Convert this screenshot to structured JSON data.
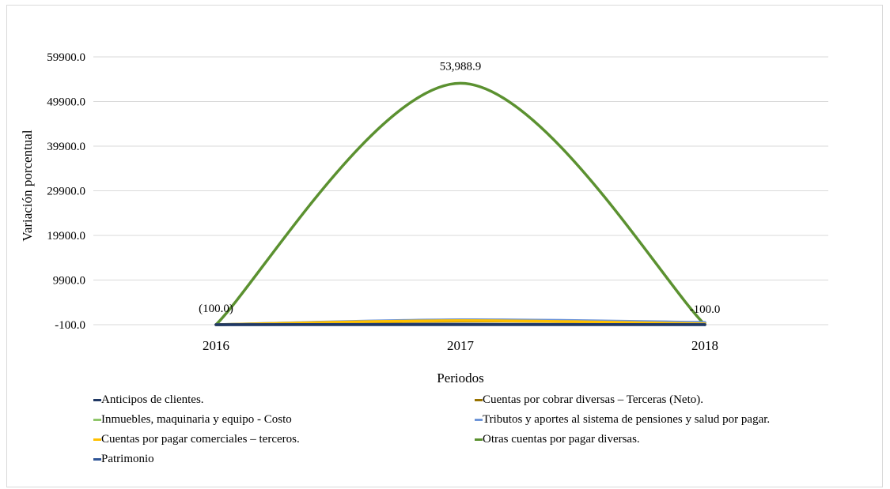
{
  "chart_data": {
    "type": "line",
    "title": "",
    "xlabel": "Periodos",
    "ylabel": "Variación porcentual",
    "categories": [
      "2016",
      "2017",
      "2018"
    ],
    "ylim": [
      -100,
      59900
    ],
    "yticks": [
      -100,
      9900,
      19900,
      29900,
      39900,
      49900,
      59900
    ],
    "ytick_labels": [
      "-100.0",
      "9900.0",
      "19900.0",
      "29900.0",
      "39900.0",
      "49900.0",
      "59900.0"
    ],
    "grid": true,
    "legend_position": "bottom",
    "series": [
      {
        "name": "Anticipos de clientes.",
        "color": "#203864",
        "values": [
          -100,
          -100,
          -100
        ]
      },
      {
        "name": "Cuentas por cobrar diversas – Terceras (Neto).",
        "color": "#997300",
        "values": [
          -100,
          700,
          300
        ]
      },
      {
        "name": "Inmuebles, maquinaria y equipo - Costo",
        "color": "#8fc66b",
        "values": [
          -100,
          900,
          200
        ]
      },
      {
        "name": "Tributos y aportes al sistema de pensiones y salud por pagar.",
        "color": "#6e95d8",
        "values": [
          -100,
          1000,
          400
        ]
      },
      {
        "name": "Cuentas por pagar comerciales – terceros.",
        "color": "#ffc000",
        "values": [
          -100,
          800,
          100
        ]
      },
      {
        "name": "Otras cuentas por pagar diversas.",
        "color": "#5b9130",
        "values": [
          -100,
          53988.9,
          -100
        ]
      },
      {
        "name": "Patrimonio",
        "color": "#2f5597",
        "values": [
          -100,
          -20,
          -80
        ]
      }
    ],
    "data_labels": [
      {
        "series": 5,
        "index": 0,
        "text": "(100.0)"
      },
      {
        "series": 5,
        "index": 1,
        "text": "53,988.9"
      },
      {
        "series": 5,
        "index": 2,
        "text": "-100.0"
      }
    ]
  }
}
